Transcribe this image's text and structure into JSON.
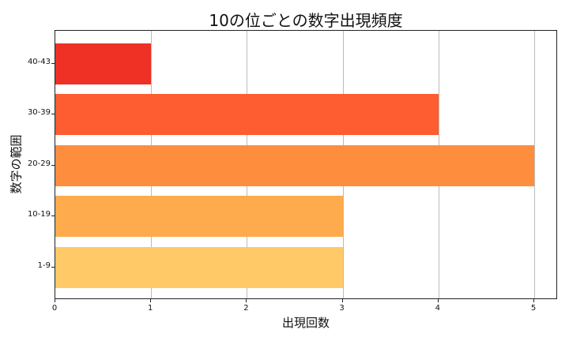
{
  "chart_data": {
    "type": "bar",
    "orientation": "horizontal",
    "title": "10の位ごとの数字出現頻度",
    "xlabel": "出現回数",
    "ylabel": "数字の範囲",
    "categories": [
      "1-9",
      "10-19",
      "20-29",
      "30-39",
      "40-43"
    ],
    "values": [
      3,
      3,
      5,
      4,
      1
    ],
    "colors": [
      "#fec966",
      "#fdab4c",
      "#fe8d3e",
      "#fe5c31",
      "#ee3124"
    ],
    "xlim": [
      0,
      5.25
    ],
    "xticks": [
      "0",
      "1",
      "2",
      "3",
      "4",
      "5"
    ],
    "grid": "x",
    "legend": null
  }
}
